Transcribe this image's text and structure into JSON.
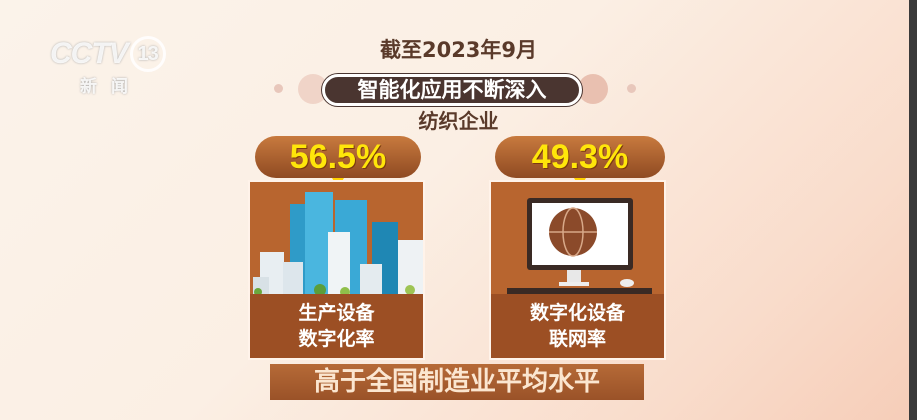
{
  "logo": {
    "brand": "CCTV",
    "channel": "13",
    "sub": "新闻"
  },
  "header": {
    "date": "截至2023年9月",
    "banner": "智能化应用不断深入",
    "subject": "纺织企业"
  },
  "cards": [
    {
      "value": "56.5%",
      "label_line1": "生产设备",
      "label_line2": "数字化率",
      "icon": "city-buildings-icon"
    },
    {
      "value": "49.3%",
      "label_line1": "数字化设备",
      "label_line2": "联网率",
      "icon": "computer-globe-icon"
    }
  ],
  "footer": {
    "text": "高于全国制造业平均水平"
  },
  "colors": {
    "card": "#b8652f",
    "value": "#ffe60a",
    "banner": "#4a3530"
  }
}
